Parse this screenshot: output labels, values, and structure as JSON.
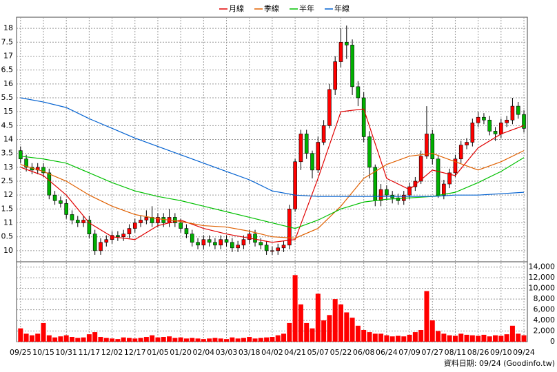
{
  "chart_data": {
    "type": "candlestick",
    "footer": "資料日期: 09/24  (Goodinfo.tw)",
    "up_color": "#ff0000",
    "down_color": "#00b000",
    "volume_color": "#ff0000",
    "xlim": [
      -0.7,
      88.6
    ],
    "xticks": [
      {
        "value": 0,
        "label": "09/25"
      },
      {
        "value": 4,
        "label": "10/15"
      },
      {
        "value": 8,
        "label": "10/31"
      },
      {
        "value": 12,
        "label": "11/17"
      },
      {
        "value": 16,
        "label": "12/02"
      },
      {
        "value": 20,
        "label": "12/17"
      },
      {
        "value": 24,
        "label": "01/05"
      },
      {
        "value": 28,
        "label": "01/20"
      },
      {
        "value": 32,
        "label": "02/04"
      },
      {
        "value": 36,
        "label": "03/03"
      },
      {
        "value": 40,
        "label": "03/18"
      },
      {
        "value": 44,
        "label": "04/02"
      },
      {
        "value": 48,
        "label": "04/21"
      },
      {
        "value": 52,
        "label": "05/07"
      },
      {
        "value": 56,
        "label": "05/22"
      },
      {
        "value": 60,
        "label": "06/08"
      },
      {
        "value": 64,
        "label": "06/24"
      },
      {
        "value": 68,
        "label": "07/09"
      },
      {
        "value": 72,
        "label": "07/27"
      },
      {
        "value": 76,
        "label": "08/11"
      },
      {
        "value": 80,
        "label": "08/26"
      },
      {
        "value": 84,
        "label": "09/10"
      },
      {
        "value": 88,
        "label": "09/24"
      }
    ],
    "ylim": [
      9.6,
      18.4
    ],
    "yticks": [
      10,
      {
        "value": 10.5,
        "label": "0.5"
      },
      11,
      {
        "value": 11.5,
        "label": "1.5"
      },
      12,
      {
        "value": 12.5,
        "label": "2.5"
      },
      13,
      {
        "value": 13.5,
        "label": "3.5"
      },
      14,
      {
        "value": 14.5,
        "label": "4.5"
      },
      15,
      {
        "value": 15.5,
        "label": "5.5"
      },
      16,
      {
        "value": 16.5,
        "label": "6.5"
      },
      17,
      {
        "value": 17.5,
        "label": "7.5"
      },
      18
    ],
    "y2lim": [
      0,
      15000
    ],
    "y2ticks": [
      0,
      {
        "value": 2000,
        "label": "2,000"
      },
      {
        "value": 4000,
        "label": "4,000"
      },
      {
        "value": 6000,
        "label": "6,000"
      },
      {
        "value": 8000,
        "label": "8,000"
      },
      {
        "value": 10000,
        "label": "10,000"
      },
      {
        "value": 12000,
        "label": "12,000"
      },
      {
        "value": 14000,
        "label": "14,000"
      }
    ],
    "grid": true,
    "open": [
      13.6,
      13.3,
      13.0,
      12.9,
      13.0,
      12.8,
      12.0,
      11.8,
      11.7,
      11.3,
      11.1,
      11.0,
      11.1,
      10.6,
      10.0,
      10.3,
      10.4,
      10.55,
      10.5,
      10.6,
      10.8,
      11.0,
      11.1,
      11.2,
      11.0,
      11.2,
      11.0,
      11.2,
      11.0,
      10.8,
      10.6,
      10.3,
      10.2,
      10.4,
      10.3,
      10.2,
      10.4,
      10.3,
      10.1,
      10.2,
      10.4,
      10.6,
      10.3,
      10.2,
      10.0,
      10.0,
      10.1,
      10.2,
      11.5,
      13.2,
      14.2,
      13.5,
      12.9,
      13.9,
      14.5,
      15.8,
      16.8,
      17.5,
      17.4,
      15.9,
      15.5,
      14.1,
      13.0,
      11.8,
      12.2,
      12.0,
      11.9,
      11.8,
      12.0,
      12.3,
      12.5,
      13.4,
      14.2,
      13.3,
      12.0,
      12.4,
      12.8,
      13.3,
      13.8,
      13.9,
      14.6,
      14.8,
      14.7,
      14.3,
      14.2,
      14.6,
      14.7,
      15.2,
      14.9
    ],
    "high": [
      13.75,
      13.45,
      13.15,
      13.15,
      13.15,
      12.95,
      12.15,
      11.95,
      11.85,
      11.45,
      11.25,
      11.25,
      11.25,
      10.75,
      10.45,
      10.55,
      10.7,
      10.7,
      10.75,
      10.95,
      11.15,
      11.25,
      11.45,
      11.6,
      11.35,
      11.35,
      11.5,
      11.35,
      11.15,
      10.95,
      10.75,
      10.45,
      10.55,
      10.55,
      10.45,
      10.55,
      10.55,
      10.45,
      10.35,
      10.55,
      10.75,
      10.75,
      10.45,
      10.35,
      10.15,
      10.25,
      10.35,
      11.65,
      13.3,
      14.35,
      14.35,
      13.6,
      14.1,
      14.7,
      16.0,
      17.0,
      18.0,
      18.1,
      17.6,
      16.1,
      15.7,
      14.3,
      13.1,
      12.4,
      12.35,
      12.15,
      12.05,
      12.15,
      12.45,
      12.65,
      13.6,
      15.2,
      14.35,
      13.45,
      12.55,
      12.95,
      13.45,
      13.95,
      14.05,
      14.75,
      15.0,
      14.95,
      14.85,
      14.45,
      14.75,
      14.85,
      15.5,
      15.35,
      15.05
    ],
    "low": [
      13.15,
      12.85,
      12.75,
      12.75,
      12.65,
      11.85,
      11.65,
      11.55,
      11.15,
      10.95,
      10.85,
      10.85,
      10.45,
      9.85,
      9.85,
      10.15,
      10.25,
      10.35,
      10.35,
      10.45,
      10.65,
      10.85,
      10.95,
      10.85,
      10.85,
      10.85,
      10.85,
      10.85,
      10.65,
      10.45,
      10.15,
      10.05,
      10.05,
      10.15,
      10.05,
      10.05,
      10.15,
      9.95,
      9.95,
      10.05,
      10.25,
      10.15,
      10.05,
      9.85,
      9.85,
      9.85,
      9.95,
      10.05,
      11.4,
      12.9,
      13.3,
      12.6,
      12.8,
      13.8,
      14.4,
      15.6,
      16.6,
      16.9,
      15.6,
      15.2,
      13.9,
      12.6,
      11.6,
      11.6,
      11.8,
      11.7,
      11.65,
      11.65,
      11.85,
      12.15,
      12.4,
      13.3,
      13.1,
      11.9,
      11.85,
      12.25,
      12.65,
      13.15,
      13.65,
      13.75,
      14.45,
      14.55,
      14.15,
      13.95,
      14.05,
      14.45,
      14.55,
      14.75,
      14.25
    ],
    "close": [
      13.3,
      13.0,
      12.9,
      13.0,
      12.8,
      12.0,
      11.8,
      11.7,
      11.3,
      11.1,
      11.0,
      11.1,
      10.6,
      10.0,
      10.3,
      10.4,
      10.55,
      10.5,
      10.6,
      10.8,
      11.0,
      11.1,
      11.2,
      11.0,
      11.2,
      11.0,
      11.2,
      11.0,
      10.8,
      10.6,
      10.3,
      10.2,
      10.4,
      10.3,
      10.2,
      10.4,
      10.3,
      10.1,
      10.2,
      10.4,
      10.6,
      10.3,
      10.2,
      10.0,
      10.0,
      10.1,
      10.2,
      11.5,
      13.2,
      14.2,
      13.5,
      12.9,
      13.9,
      14.5,
      15.8,
      16.8,
      17.5,
      17.4,
      15.9,
      15.5,
      14.1,
      13.0,
      11.8,
      12.2,
      12.0,
      11.9,
      11.8,
      12.0,
      12.3,
      12.5,
      13.4,
      14.2,
      13.3,
      12.0,
      12.4,
      12.8,
      13.3,
      13.8,
      13.9,
      14.6,
      14.8,
      14.7,
      14.3,
      14.2,
      14.6,
      14.7,
      15.2,
      14.9,
      14.4
    ],
    "volume": [
      2500,
      1500,
      1200,
      1500,
      3500,
      1200,
      800,
      1000,
      1200,
      900,
      700,
      800,
      1400,
      1800,
      900,
      700,
      600,
      500,
      800,
      700,
      600,
      700,
      900,
      1200,
      800,
      900,
      1000,
      700,
      800,
      600,
      700,
      600,
      500,
      600,
      700,
      600,
      500,
      800,
      600,
      700,
      900,
      600,
      700,
      800,
      900,
      1200,
      1500,
      3500,
      12500,
      7000,
      3500,
      2500,
      9000,
      4000,
      5000,
      8000,
      7000,
      5500,
      4500,
      3000,
      2200,
      1800,
      1500,
      1500,
      1200,
      1000,
      1100,
      1000,
      1300,
      1800,
      2200,
      9500,
      4000,
      2000,
      1500,
      1200,
      1100,
      1500,
      1300,
      1200,
      1100,
      1300,
      1000,
      1200,
      1100,
      1400,
      3000,
      1500,
      1200
    ],
    "series": [
      {
        "name": "月線",
        "color": "#e00000",
        "x": [
          0,
          4,
          8,
          12,
          16,
          20,
          24,
          28,
          32,
          36,
          40,
          44,
          48,
          52,
          56,
          60,
          64,
          68,
          72,
          76,
          80,
          84,
          88
        ],
        "values": [
          13.0,
          12.7,
          12.0,
          11.0,
          10.5,
          10.4,
          10.9,
          11.1,
          10.8,
          10.6,
          10.45,
          10.3,
          10.4,
          12.6,
          15.0,
          15.1,
          12.6,
          12.2,
          12.9,
          12.7,
          13.7,
          14.2,
          14.5
        ]
      },
      {
        "name": "季線",
        "color": "#e06000",
        "x": [
          0,
          4,
          8,
          12,
          16,
          20,
          24,
          28,
          32,
          36,
          40,
          44,
          48,
          52,
          56,
          60,
          64,
          68,
          72,
          76,
          80,
          84,
          88
        ],
        "values": [
          13.1,
          12.85,
          12.5,
          12.0,
          11.6,
          11.3,
          11.15,
          11.05,
          10.9,
          10.85,
          10.7,
          10.5,
          10.45,
          10.8,
          11.6,
          12.6,
          13.1,
          13.4,
          13.5,
          13.2,
          12.9,
          13.2,
          13.6
        ]
      },
      {
        "name": "半年",
        "color": "#00c000",
        "x": [
          0,
          4,
          8,
          12,
          16,
          20,
          24,
          28,
          32,
          36,
          40,
          44,
          48,
          52,
          56,
          60,
          64,
          68,
          72,
          76,
          80,
          84,
          88
        ],
        "values": [
          13.4,
          13.3,
          13.15,
          12.8,
          12.45,
          12.15,
          11.95,
          11.8,
          11.6,
          11.4,
          11.2,
          11.0,
          10.8,
          11.1,
          11.5,
          11.75,
          11.85,
          11.9,
          11.95,
          12.1,
          12.45,
          12.85,
          13.35
        ]
      },
      {
        "name": "年線",
        "color": "#0060d0",
        "x": [
          0,
          4,
          8,
          12,
          16,
          20,
          24,
          28,
          32,
          36,
          40,
          44,
          48,
          52,
          56,
          60,
          64,
          68,
          72,
          76,
          80,
          84,
          88
        ],
        "values": [
          15.5,
          15.35,
          15.15,
          14.75,
          14.4,
          14.05,
          13.75,
          13.45,
          13.15,
          12.85,
          12.55,
          12.15,
          12.0,
          11.95,
          11.95,
          11.95,
          11.95,
          11.95,
          11.95,
          12.0,
          12.0,
          12.05,
          12.1
        ]
      }
    ]
  }
}
